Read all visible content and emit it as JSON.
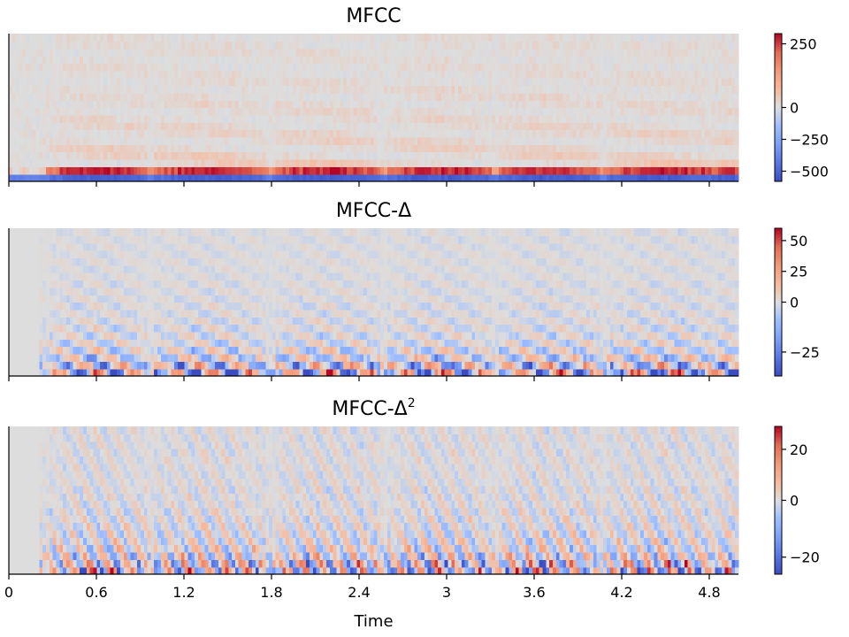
{
  "chart_data": [
    {
      "type": "heatmap",
      "title": "MFCC",
      "title_sup": "",
      "xlabel": "",
      "ylabel": "",
      "xlim": [
        0,
        5.0
      ],
      "x_ticks": [
        "0",
        "0.6",
        "1.2",
        "1.8",
        "2.4",
        "3",
        "3.6",
        "4.2",
        "4.8"
      ],
      "x_tick_values": [
        0,
        0.6,
        1.2,
        1.8,
        2.4,
        3.0,
        3.6,
        4.2,
        4.8
      ],
      "x_tick_labels_visible": false,
      "n_coefficients": 20,
      "n_frames": 216,
      "colormap": "coolwarm",
      "colorbar": {
        "vmin": -580,
        "vmax": 290,
        "ticks": [
          250,
          0,
          -250,
          -500
        ],
        "tick_labels": [
          "250",
          "0",
          "−250",
          "−500"
        ]
      }
    },
    {
      "type": "heatmap",
      "title": "MFCC-Δ",
      "title_sup": "",
      "xlabel": "",
      "ylabel": "",
      "xlim": [
        0,
        5.0
      ],
      "x_ticks": [
        "0",
        "0.6",
        "1.2",
        "1.8",
        "2.4",
        "3",
        "3.6",
        "4.2",
        "4.8"
      ],
      "x_tick_values": [
        0,
        0.6,
        1.2,
        1.8,
        2.4,
        3.0,
        3.6,
        4.2,
        4.8
      ],
      "x_tick_labels_visible": false,
      "n_coefficients": 20,
      "n_frames": 216,
      "colormap": "coolwarm",
      "colorbar": {
        "vmin": -37,
        "vmax": 60,
        "ticks": [
          50,
          25,
          0,
          -25
        ],
        "tick_labels": [
          "50",
          "25",
          "0",
          "−25"
        ]
      }
    },
    {
      "type": "heatmap",
      "title": "MFCC-Δ",
      "title_sup": "2",
      "xlabel": "Time",
      "ylabel": "",
      "xlim": [
        0,
        5.0
      ],
      "x_ticks": [
        "0",
        "0.6",
        "1.2",
        "1.8",
        "2.4",
        "3",
        "3.6",
        "4.2",
        "4.8"
      ],
      "x_tick_values": [
        0,
        0.6,
        1.2,
        1.8,
        2.4,
        3.0,
        3.6,
        4.2,
        4.8
      ],
      "x_tick_labels_visible": true,
      "n_coefficients": 20,
      "n_frames": 216,
      "colormap": "coolwarm",
      "colorbar": {
        "vmin": -26,
        "vmax": 29,
        "ticks": [
          20,
          0,
          -20
        ],
        "tick_labels": [
          "20",
          "0",
          "−20"
        ]
      }
    }
  ]
}
